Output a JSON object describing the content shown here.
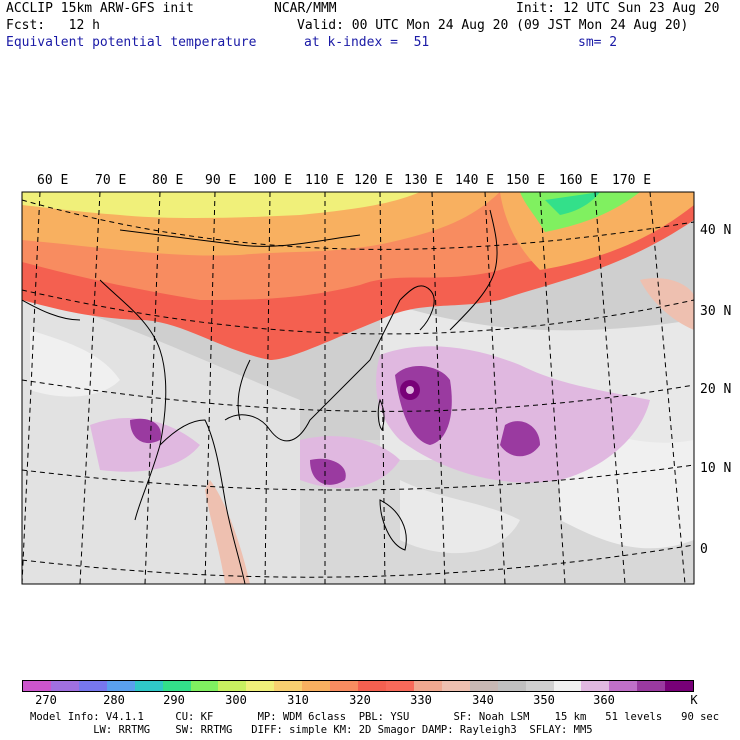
{
  "header": {
    "model_line": "ACCLIP 15km ARW-GFS init",
    "institution": "NCAR/MMM",
    "init_line": "Init: 12 UTC Sun 23 Aug 20",
    "fcst_line": "Fcst:   12 h",
    "valid_line": "Valid: 00 UTC Mon 24 Aug 20 (09 JST Mon 24 Aug 20)",
    "field_name": "Equivalent potential temperature",
    "level_line": "at k-index =  51",
    "smooth_line": "sm= 2"
  },
  "map": {
    "lon_labels": [
      "60 E",
      "70 E",
      "80 E",
      "90 E",
      "100 E",
      "110 E",
      "120 E",
      "130 E",
      "140 E",
      "150 E",
      "160 E",
      "170 E"
    ],
    "lat_labels": [
      "40 N",
      "30 N",
      "20 N",
      "10 N",
      "0"
    ],
    "lon_values": [
      60,
      70,
      80,
      90,
      100,
      110,
      120,
      130,
      140,
      150,
      160,
      170
    ],
    "lat_values": [
      40,
      30,
      20,
      10,
      0
    ]
  },
  "legend": {
    "tick_labels": [
      "270",
      "280",
      "290",
      "300",
      "310",
      "320",
      "330",
      "340",
      "350",
      "360",
      "K"
    ],
    "colors": [
      "#cc55cc",
      "#a070e0",
      "#7777ee",
      "#5aa0ee",
      "#30c8c8",
      "#33e08a",
      "#80f060",
      "#c8f060",
      "#f0f07a",
      "#f8d070",
      "#f8b060",
      "#f88c60",
      "#f46050",
      "#f86a5a",
      "#f0a890",
      "#eec0b0",
      "#c8b8b4",
      "#c0c0c0",
      "#d0d0d0",
      "#f0f0f0",
      "#e0b8e0",
      "#c070c8",
      "#9a3aa0",
      "#780078"
    ]
  },
  "footer": {
    "line1": "Model Info: V4.1.1     CU: KF       MP: WDM 6class  PBL: YSU       SF: Noah LSM    15 km   51 levels   90 sec",
    "line2": "          LW: RRTMG    SW: RRTMG   DIFF: simple KM: 2D Smagor DAMP: Rayleigh3  SFLAY: MM5"
  }
}
